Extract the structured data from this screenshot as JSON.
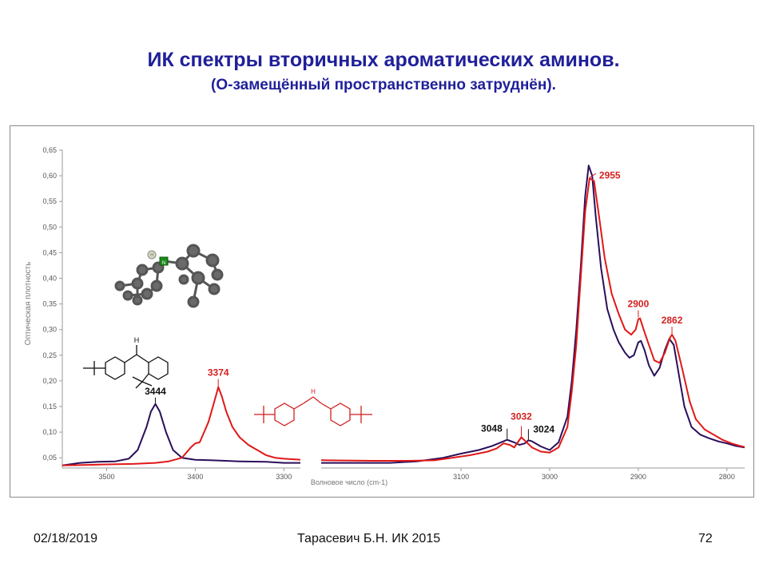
{
  "slide": {
    "title": "ИК спектры вторичных ароматических аминов.",
    "subtitle": "(О-замещённый пространственно затруднён).",
    "footer_date": "02/18/2019",
    "footer_author": "Тарасевич Б.Н.  ИК 2015",
    "footer_page": "72"
  },
  "chart_data": {
    "type": "line",
    "xlabel": "Волновое число (cm-1)",
    "ylabel": "Оптическая плотность",
    "xlim": [
      3550,
      2780
    ],
    "ylim": [
      0.03,
      0.65
    ],
    "x_ticks": [
      "3500",
      "3400",
      "3300",
      "3100",
      "3000",
      "2900",
      "2800"
    ],
    "y_ticks": [
      "0,05",
      "0,10",
      "0,15",
      "0,20",
      "0,25",
      "0,30",
      "0,35",
      "0,40",
      "0,45",
      "0,50",
      "0,55",
      "0,60",
      "0,65"
    ],
    "colors": {
      "series_dark": "#2a0f5a",
      "series_red": "#e01818",
      "label_red": "#d42020",
      "label_dark": "#111111"
    },
    "series": [
      {
        "color": "#2a0f5a",
        "points": [
          [
            3550,
            0.035
          ],
          [
            3530,
            0.04
          ],
          [
            3510,
            0.042
          ],
          [
            3490,
            0.043
          ],
          [
            3475,
            0.048
          ],
          [
            3465,
            0.065
          ],
          [
            3455,
            0.11
          ],
          [
            3450,
            0.14
          ],
          [
            3445,
            0.155
          ],
          [
            3440,
            0.14
          ],
          [
            3433,
            0.1
          ],
          [
            3425,
            0.065
          ],
          [
            3415,
            0.05
          ],
          [
            3400,
            0.046
          ],
          [
            3380,
            0.045
          ],
          [
            3350,
            0.043
          ],
          [
            3320,
            0.042
          ],
          [
            3300,
            0.04
          ],
          [
            3280,
            0.04
          ],
          [
            3250,
            0.04
          ],
          [
            3220,
            0.04
          ],
          [
            3180,
            0.04
          ],
          [
            3150,
            0.043
          ],
          [
            3120,
            0.05
          ],
          [
            3100,
            0.058
          ],
          [
            3080,
            0.065
          ],
          [
            3065,
            0.073
          ],
          [
            3055,
            0.08
          ],
          [
            3048,
            0.085
          ],
          [
            3040,
            0.08
          ],
          [
            3034,
            0.075
          ],
          [
            3028,
            0.078
          ],
          [
            3024,
            0.084
          ],
          [
            3020,
            0.082
          ],
          [
            3010,
            0.072
          ],
          [
            3000,
            0.065
          ],
          [
            2990,
            0.08
          ],
          [
            2980,
            0.13
          ],
          [
            2975,
            0.2
          ],
          [
            2970,
            0.3
          ],
          [
            2965,
            0.42
          ],
          [
            2960,
            0.56
          ],
          [
            2956,
            0.62
          ],
          [
            2952,
            0.6
          ],
          [
            2948,
            0.52
          ],
          [
            2942,
            0.42
          ],
          [
            2935,
            0.34
          ],
          [
            2928,
            0.3
          ],
          [
            2922,
            0.275
          ],
          [
            2915,
            0.255
          ],
          [
            2910,
            0.245
          ],
          [
            2905,
            0.25
          ],
          [
            2900,
            0.275
          ],
          [
            2897,
            0.278
          ],
          [
            2893,
            0.26
          ],
          [
            2888,
            0.23
          ],
          [
            2882,
            0.21
          ],
          [
            2876,
            0.225
          ],
          [
            2870,
            0.26
          ],
          [
            2865,
            0.282
          ],
          [
            2860,
            0.27
          ],
          [
            2855,
            0.22
          ],
          [
            2848,
            0.15
          ],
          [
            2840,
            0.11
          ],
          [
            2830,
            0.095
          ],
          [
            2820,
            0.088
          ],
          [
            2810,
            0.082
          ],
          [
            2800,
            0.078
          ],
          [
            2790,
            0.073
          ],
          [
            2780,
            0.07
          ]
        ]
      },
      {
        "color": "#e01818",
        "points": [
          [
            3550,
            0.035
          ],
          [
            3520,
            0.036
          ],
          [
            3500,
            0.037
          ],
          [
            3470,
            0.038
          ],
          [
            3445,
            0.04
          ],
          [
            3430,
            0.043
          ],
          [
            3415,
            0.05
          ],
          [
            3405,
            0.07
          ],
          [
            3400,
            0.078
          ],
          [
            3395,
            0.08
          ],
          [
            3390,
            0.1
          ],
          [
            3385,
            0.12
          ],
          [
            3380,
            0.15
          ],
          [
            3376,
            0.175
          ],
          [
            3374,
            0.188
          ],
          [
            3370,
            0.17
          ],
          [
            3365,
            0.14
          ],
          [
            3358,
            0.11
          ],
          [
            3350,
            0.09
          ],
          [
            3340,
            0.075
          ],
          [
            3330,
            0.065
          ],
          [
            3320,
            0.055
          ],
          [
            3310,
            0.05
          ],
          [
            3300,
            0.048
          ],
          [
            3280,
            0.046
          ],
          [
            3250,
            0.045
          ],
          [
            3200,
            0.044
          ],
          [
            3160,
            0.044
          ],
          [
            3130,
            0.045
          ],
          [
            3110,
            0.05
          ],
          [
            3090,
            0.055
          ],
          [
            3070,
            0.062
          ],
          [
            3060,
            0.068
          ],
          [
            3052,
            0.078
          ],
          [
            3045,
            0.075
          ],
          [
            3040,
            0.07
          ],
          [
            3032,
            0.09
          ],
          [
            3026,
            0.08
          ],
          [
            3020,
            0.07
          ],
          [
            3010,
            0.062
          ],
          [
            3000,
            0.06
          ],
          [
            2990,
            0.07
          ],
          [
            2980,
            0.11
          ],
          [
            2975,
            0.18
          ],
          [
            2970,
            0.27
          ],
          [
            2965,
            0.4
          ],
          [
            2960,
            0.53
          ],
          [
            2955,
            0.595
          ],
          [
            2950,
            0.59
          ],
          [
            2945,
            0.53
          ],
          [
            2938,
            0.44
          ],
          [
            2930,
            0.37
          ],
          [
            2922,
            0.33
          ],
          [
            2915,
            0.3
          ],
          [
            2908,
            0.29
          ],
          [
            2903,
            0.3
          ],
          [
            2900,
            0.32
          ],
          [
            2898,
            0.322
          ],
          [
            2894,
            0.3
          ],
          [
            2888,
            0.27
          ],
          [
            2882,
            0.24
          ],
          [
            2876,
            0.235
          ],
          [
            2870,
            0.255
          ],
          [
            2864,
            0.285
          ],
          [
            2862,
            0.29
          ],
          [
            2858,
            0.278
          ],
          [
            2850,
            0.22
          ],
          [
            2842,
            0.16
          ],
          [
            2835,
            0.125
          ],
          [
            2825,
            0.105
          ],
          [
            2815,
            0.095
          ],
          [
            2805,
            0.085
          ],
          [
            2795,
            0.078
          ],
          [
            2785,
            0.073
          ],
          [
            2780,
            0.071
          ]
        ]
      }
    ],
    "annotations": [
      {
        "text": "2955",
        "x": 2955,
        "y": 0.595,
        "color": "red"
      },
      {
        "text": "2900",
        "x": 2900,
        "y": 0.322,
        "color": "red"
      },
      {
        "text": "2862",
        "x": 2862,
        "y": 0.29,
        "color": "red"
      },
      {
        "text": "3374",
        "x": 3374,
        "y": 0.188,
        "color": "red"
      },
      {
        "text": "3444",
        "x": 3445,
        "y": 0.155,
        "color": "dark"
      },
      {
        "text": "3032",
        "x": 3032,
        "y": 0.09,
        "color": "red"
      },
      {
        "text": "3048",
        "x": 3048,
        "y": 0.085,
        "color": "dark"
      },
      {
        "text": "3024",
        "x": 3024,
        "y": 0.084,
        "color": "dark"
      }
    ],
    "structure_labels": {
      "nh": "H",
      "n": "N",
      "ball_h": "H",
      "ball_n": "N"
    }
  }
}
